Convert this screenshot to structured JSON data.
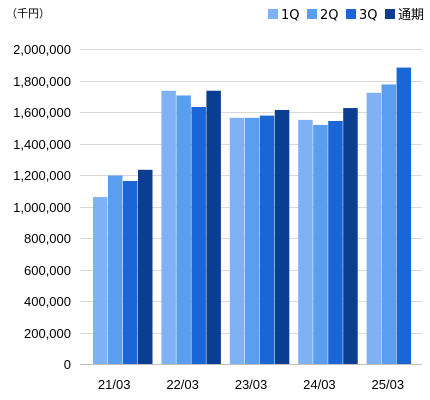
{
  "chart_data": {
    "type": "bar",
    "unit_label": "（千円）",
    "categories": [
      "21/03",
      "22/03",
      "23/03",
      "24/03",
      "25/03"
    ],
    "series": [
      {
        "name": "1Q",
        "color": "#7fb2f5",
        "values": [
          1060000,
          1735000,
          1563000,
          1550000,
          1722000
        ]
      },
      {
        "name": "2Q",
        "color": "#5a9ef0",
        "values": [
          1197000,
          1705000,
          1563000,
          1518000,
          1775000
        ]
      },
      {
        "name": "3Q",
        "color": "#1a66d6",
        "values": [
          1162000,
          1632000,
          1577000,
          1543000,
          1882000
        ]
      },
      {
        "name": "通期",
        "color": "#0b3d91",
        "values": [
          1233000,
          1735000,
          1613000,
          1625000,
          null
        ]
      }
    ],
    "y_ticks": [
      "0",
      "200,000",
      "400,000",
      "600,000",
      "800,000",
      "1,000,000",
      "1,200,000",
      "1,400,000",
      "1,600,000",
      "1,800,000",
      "2,000,000"
    ],
    "ylim": [
      0,
      2000000
    ],
    "y_step": 200000,
    "grid": true,
    "legend_position": "top-right",
    "title": "",
    "xlabel": "",
    "ylabel": ""
  }
}
